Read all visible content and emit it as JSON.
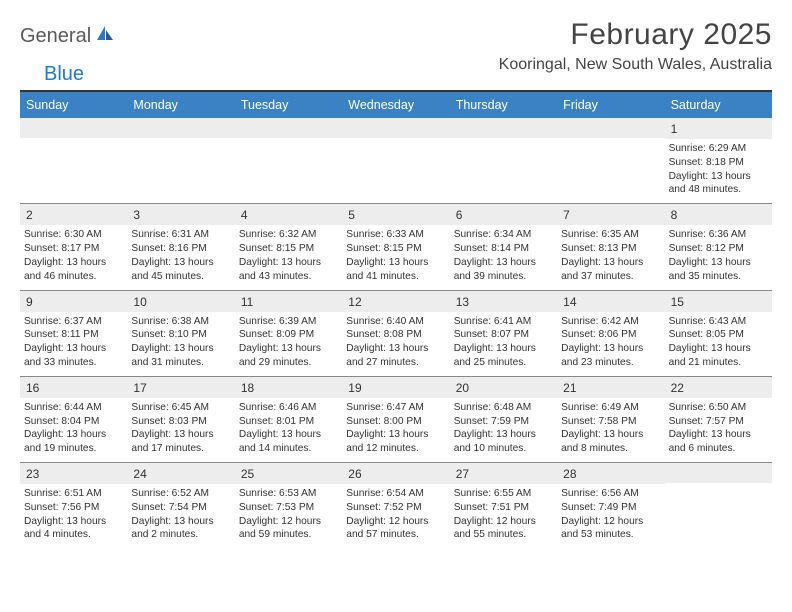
{
  "brand": {
    "part1": "General",
    "part2": "Blue"
  },
  "title": "February 2025",
  "location": "Kooringal, New South Wales, Australia",
  "colors": {
    "header_bg": "#3a82c4",
    "header_text": "#ffffff",
    "daynum_bg": "#ededed",
    "rule": "#333333",
    "text": "#333333",
    "brand_gray": "#5a5a5a",
    "brand_blue": "#2a78c2"
  },
  "day_names": [
    "Sunday",
    "Monday",
    "Tuesday",
    "Wednesday",
    "Thursday",
    "Friday",
    "Saturday"
  ],
  "weeks": [
    [
      {
        "n": "",
        "l": []
      },
      {
        "n": "",
        "l": []
      },
      {
        "n": "",
        "l": []
      },
      {
        "n": "",
        "l": []
      },
      {
        "n": "",
        "l": []
      },
      {
        "n": "",
        "l": []
      },
      {
        "n": "1",
        "l": [
          "Sunrise: 6:29 AM",
          "Sunset: 8:18 PM",
          "Daylight: 13 hours and 48 minutes."
        ]
      }
    ],
    [
      {
        "n": "2",
        "l": [
          "Sunrise: 6:30 AM",
          "Sunset: 8:17 PM",
          "Daylight: 13 hours and 46 minutes."
        ]
      },
      {
        "n": "3",
        "l": [
          "Sunrise: 6:31 AM",
          "Sunset: 8:16 PM",
          "Daylight: 13 hours and 45 minutes."
        ]
      },
      {
        "n": "4",
        "l": [
          "Sunrise: 6:32 AM",
          "Sunset: 8:15 PM",
          "Daylight: 13 hours and 43 minutes."
        ]
      },
      {
        "n": "5",
        "l": [
          "Sunrise: 6:33 AM",
          "Sunset: 8:15 PM",
          "Daylight: 13 hours and 41 minutes."
        ]
      },
      {
        "n": "6",
        "l": [
          "Sunrise: 6:34 AM",
          "Sunset: 8:14 PM",
          "Daylight: 13 hours and 39 minutes."
        ]
      },
      {
        "n": "7",
        "l": [
          "Sunrise: 6:35 AM",
          "Sunset: 8:13 PM",
          "Daylight: 13 hours and 37 minutes."
        ]
      },
      {
        "n": "8",
        "l": [
          "Sunrise: 6:36 AM",
          "Sunset: 8:12 PM",
          "Daylight: 13 hours and 35 minutes."
        ]
      }
    ],
    [
      {
        "n": "9",
        "l": [
          "Sunrise: 6:37 AM",
          "Sunset: 8:11 PM",
          "Daylight: 13 hours and 33 minutes."
        ]
      },
      {
        "n": "10",
        "l": [
          "Sunrise: 6:38 AM",
          "Sunset: 8:10 PM",
          "Daylight: 13 hours and 31 minutes."
        ]
      },
      {
        "n": "11",
        "l": [
          "Sunrise: 6:39 AM",
          "Sunset: 8:09 PM",
          "Daylight: 13 hours and 29 minutes."
        ]
      },
      {
        "n": "12",
        "l": [
          "Sunrise: 6:40 AM",
          "Sunset: 8:08 PM",
          "Daylight: 13 hours and 27 minutes."
        ]
      },
      {
        "n": "13",
        "l": [
          "Sunrise: 6:41 AM",
          "Sunset: 8:07 PM",
          "Daylight: 13 hours and 25 minutes."
        ]
      },
      {
        "n": "14",
        "l": [
          "Sunrise: 6:42 AM",
          "Sunset: 8:06 PM",
          "Daylight: 13 hours and 23 minutes."
        ]
      },
      {
        "n": "15",
        "l": [
          "Sunrise: 6:43 AM",
          "Sunset: 8:05 PM",
          "Daylight: 13 hours and 21 minutes."
        ]
      }
    ],
    [
      {
        "n": "16",
        "l": [
          "Sunrise: 6:44 AM",
          "Sunset: 8:04 PM",
          "Daylight: 13 hours and 19 minutes."
        ]
      },
      {
        "n": "17",
        "l": [
          "Sunrise: 6:45 AM",
          "Sunset: 8:03 PM",
          "Daylight: 13 hours and 17 minutes."
        ]
      },
      {
        "n": "18",
        "l": [
          "Sunrise: 6:46 AM",
          "Sunset: 8:01 PM",
          "Daylight: 13 hours and 14 minutes."
        ]
      },
      {
        "n": "19",
        "l": [
          "Sunrise: 6:47 AM",
          "Sunset: 8:00 PM",
          "Daylight: 13 hours and 12 minutes."
        ]
      },
      {
        "n": "20",
        "l": [
          "Sunrise: 6:48 AM",
          "Sunset: 7:59 PM",
          "Daylight: 13 hours and 10 minutes."
        ]
      },
      {
        "n": "21",
        "l": [
          "Sunrise: 6:49 AM",
          "Sunset: 7:58 PM",
          "Daylight: 13 hours and 8 minutes."
        ]
      },
      {
        "n": "22",
        "l": [
          "Sunrise: 6:50 AM",
          "Sunset: 7:57 PM",
          "Daylight: 13 hours and 6 minutes."
        ]
      }
    ],
    [
      {
        "n": "23",
        "l": [
          "Sunrise: 6:51 AM",
          "Sunset: 7:56 PM",
          "Daylight: 13 hours and 4 minutes."
        ]
      },
      {
        "n": "24",
        "l": [
          "Sunrise: 6:52 AM",
          "Sunset: 7:54 PM",
          "Daylight: 13 hours and 2 minutes."
        ]
      },
      {
        "n": "25",
        "l": [
          "Sunrise: 6:53 AM",
          "Sunset: 7:53 PM",
          "Daylight: 12 hours and 59 minutes."
        ]
      },
      {
        "n": "26",
        "l": [
          "Sunrise: 6:54 AM",
          "Sunset: 7:52 PM",
          "Daylight: 12 hours and 57 minutes."
        ]
      },
      {
        "n": "27",
        "l": [
          "Sunrise: 6:55 AM",
          "Sunset: 7:51 PM",
          "Daylight: 12 hours and 55 minutes."
        ]
      },
      {
        "n": "28",
        "l": [
          "Sunrise: 6:56 AM",
          "Sunset: 7:49 PM",
          "Daylight: 12 hours and 53 minutes."
        ]
      },
      {
        "n": "",
        "l": []
      }
    ]
  ]
}
